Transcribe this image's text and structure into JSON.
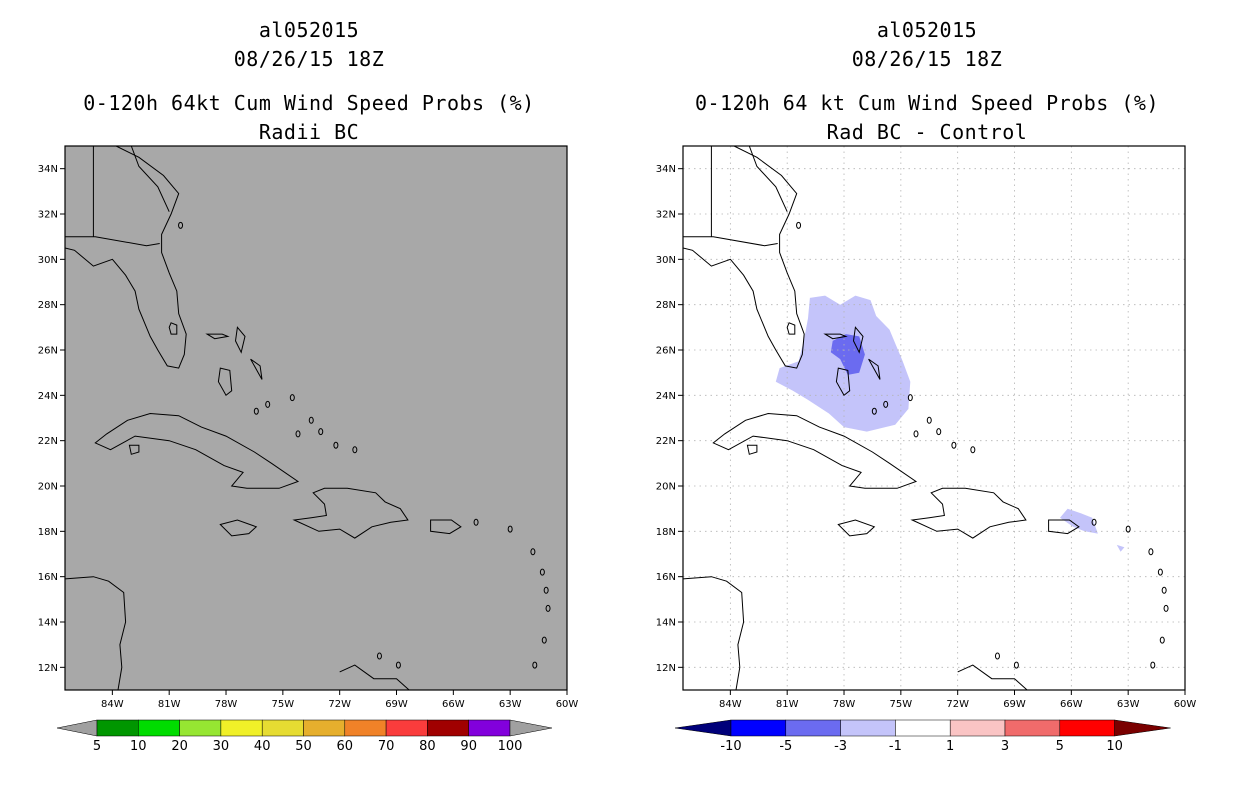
{
  "left": {
    "storm_id": "al052015",
    "datetime": "08/26/15 18Z",
    "title": "0-120h 64kt Cum Wind Speed Probs (%)",
    "subtitle": "Radii BC",
    "colorbar": {
      "labels": [
        "5",
        "10",
        "20",
        "30",
        "40",
        "50",
        "60",
        "70",
        "80",
        "90",
        "100"
      ],
      "colors": [
        "#009600",
        "#00dc00",
        "#96e632",
        "#f0f028",
        "#e6dc32",
        "#e6af2d",
        "#f08228",
        "#fa3c3c",
        "#a00000",
        "#8200dc",
        "#a0a0a0"
      ]
    },
    "background_color": "#a8a8a8"
  },
  "right": {
    "storm_id": "al052015",
    "datetime": "08/26/15 18Z",
    "title": "0-120h 64 kt Cum Wind Speed Probs (%)",
    "subtitle": "Rad BC - Control",
    "colorbar": {
      "labels": [
        "-10",
        "-5",
        "-3",
        "-1",
        "1",
        "3",
        "5",
        "10"
      ],
      "colors": [
        "#00007a",
        "#0000ff",
        "#6b6bf0",
        "#c4c4fa",
        "#ffffff",
        "#fac4c4",
        "#f06b6b",
        "#ff0000",
        "#7a0000"
      ]
    },
    "background_color": "#ffffff"
  },
  "chart_data": [
    {
      "type": "map",
      "title": "0-120h 64kt Cum Wind Speed Probs (%)",
      "subtitle": "Radii BC",
      "x_ticks": [
        "84W",
        "81W",
        "78W",
        "75W",
        "72W",
        "69W",
        "66W",
        "63W",
        "60W"
      ],
      "y_ticks": [
        "12N",
        "14N",
        "16N",
        "18N",
        "20N",
        "22N",
        "24N",
        "26N",
        "28N",
        "30N",
        "32N",
        "34N"
      ],
      "xlim": [
        -86.5,
        -60
      ],
      "ylim": [
        11,
        35
      ],
      "grid": false
    },
    {
      "type": "map",
      "title": "0-120h 64 kt Cum Wind Speed Probs (%)",
      "subtitle": "Rad BC - Control",
      "x_ticks": [
        "84W",
        "81W",
        "78W",
        "75W",
        "72W",
        "69W",
        "66W",
        "63W",
        "60W"
      ],
      "y_ticks": [
        "12N",
        "14N",
        "16N",
        "18N",
        "20N",
        "22N",
        "24N",
        "26N",
        "28N",
        "30N",
        "32N",
        "34N"
      ],
      "xlim": [
        -86.5,
        -60
      ],
      "ylim": [
        11,
        35
      ],
      "grid": true,
      "difference_regions": [
        {
          "category": "-3 to -1",
          "area": "Bahamas / south Florida"
        },
        {
          "category": "-5 to -3",
          "area": "Grand Bahama / Abaco"
        },
        {
          "category": "-3 to -1",
          "area": "Puerto Rico / Virgin Islands"
        }
      ]
    }
  ]
}
